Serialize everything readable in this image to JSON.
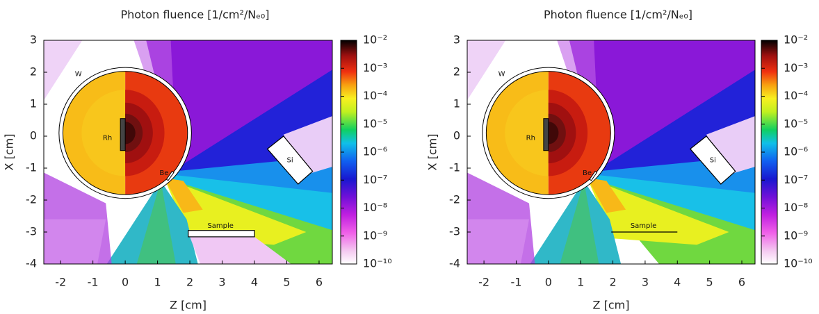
{
  "chart_data": [
    {
      "type": "heatmap",
      "title": "Photon fluence [1/cm²/Nₑ₀]",
      "x_label": "Z [cm]",
      "y_label": "X [cm]",
      "xlim": [
        -2.52,
        6.41
      ],
      "ylim": [
        -4,
        3
      ],
      "xticks": [
        -2,
        -1,
        0,
        1,
        2,
        3,
        4,
        5,
        6
      ],
      "yticks": [
        -4,
        -3,
        -2,
        -1,
        0,
        1,
        2,
        3
      ],
      "colorbar": {
        "lim": [
          1e-10,
          0.01
        ],
        "log_scale": true,
        "ticks": [
          {
            "value": 1e-10,
            "label": "10⁻¹⁰"
          },
          {
            "value": 1e-09,
            "label": "10⁻⁹"
          },
          {
            "value": 1e-08,
            "label": "10⁻⁸"
          },
          {
            "value": 1e-07,
            "label": "10⁻⁷"
          },
          {
            "value": 1e-06,
            "label": "10⁻⁶"
          },
          {
            "value": 1e-05,
            "label": "10⁻⁵"
          },
          {
            "value": 0.0001,
            "label": "10⁻⁴"
          },
          {
            "value": 0.001,
            "label": "10⁻³"
          },
          {
            "value": 0.01,
            "label": "10⁻²"
          }
        ]
      },
      "annotations": [
        "W",
        "Rh",
        "Be",
        "Si",
        "Sample"
      ]
    },
    {
      "type": "heatmap",
      "title": "Photon fluence [1/cm²/Nₑ₀]",
      "x_label": "Z [cm]",
      "y_label": "X [cm]",
      "xlim": [
        -2.52,
        6.41
      ],
      "ylim": [
        -4,
        3
      ],
      "xticks": [
        -2,
        -1,
        0,
        1,
        2,
        3,
        4,
        5,
        6
      ],
      "yticks": [
        -4,
        -3,
        -2,
        -1,
        0,
        1,
        2,
        3
      ],
      "colorbar": {
        "lim": [
          1e-10,
          0.01
        ],
        "log_scale": true,
        "ticks": [
          {
            "value": 1e-10,
            "label": "10⁻¹⁰"
          },
          {
            "value": 1e-09,
            "label": "10⁻⁹"
          },
          {
            "value": 1e-08,
            "label": "10⁻⁸"
          },
          {
            "value": 1e-07,
            "label": "10⁻⁷"
          },
          {
            "value": 1e-06,
            "label": "10⁻⁶"
          },
          {
            "value": 1e-05,
            "label": "10⁻⁵"
          },
          {
            "value": 0.0001,
            "label": "10⁻⁴"
          },
          {
            "value": 0.001,
            "label": "10⁻³"
          },
          {
            "value": 0.01,
            "label": "10⁻²"
          }
        ]
      },
      "annotations": [
        "W",
        "Rh",
        "Be",
        "Si",
        "Sample"
      ]
    }
  ]
}
